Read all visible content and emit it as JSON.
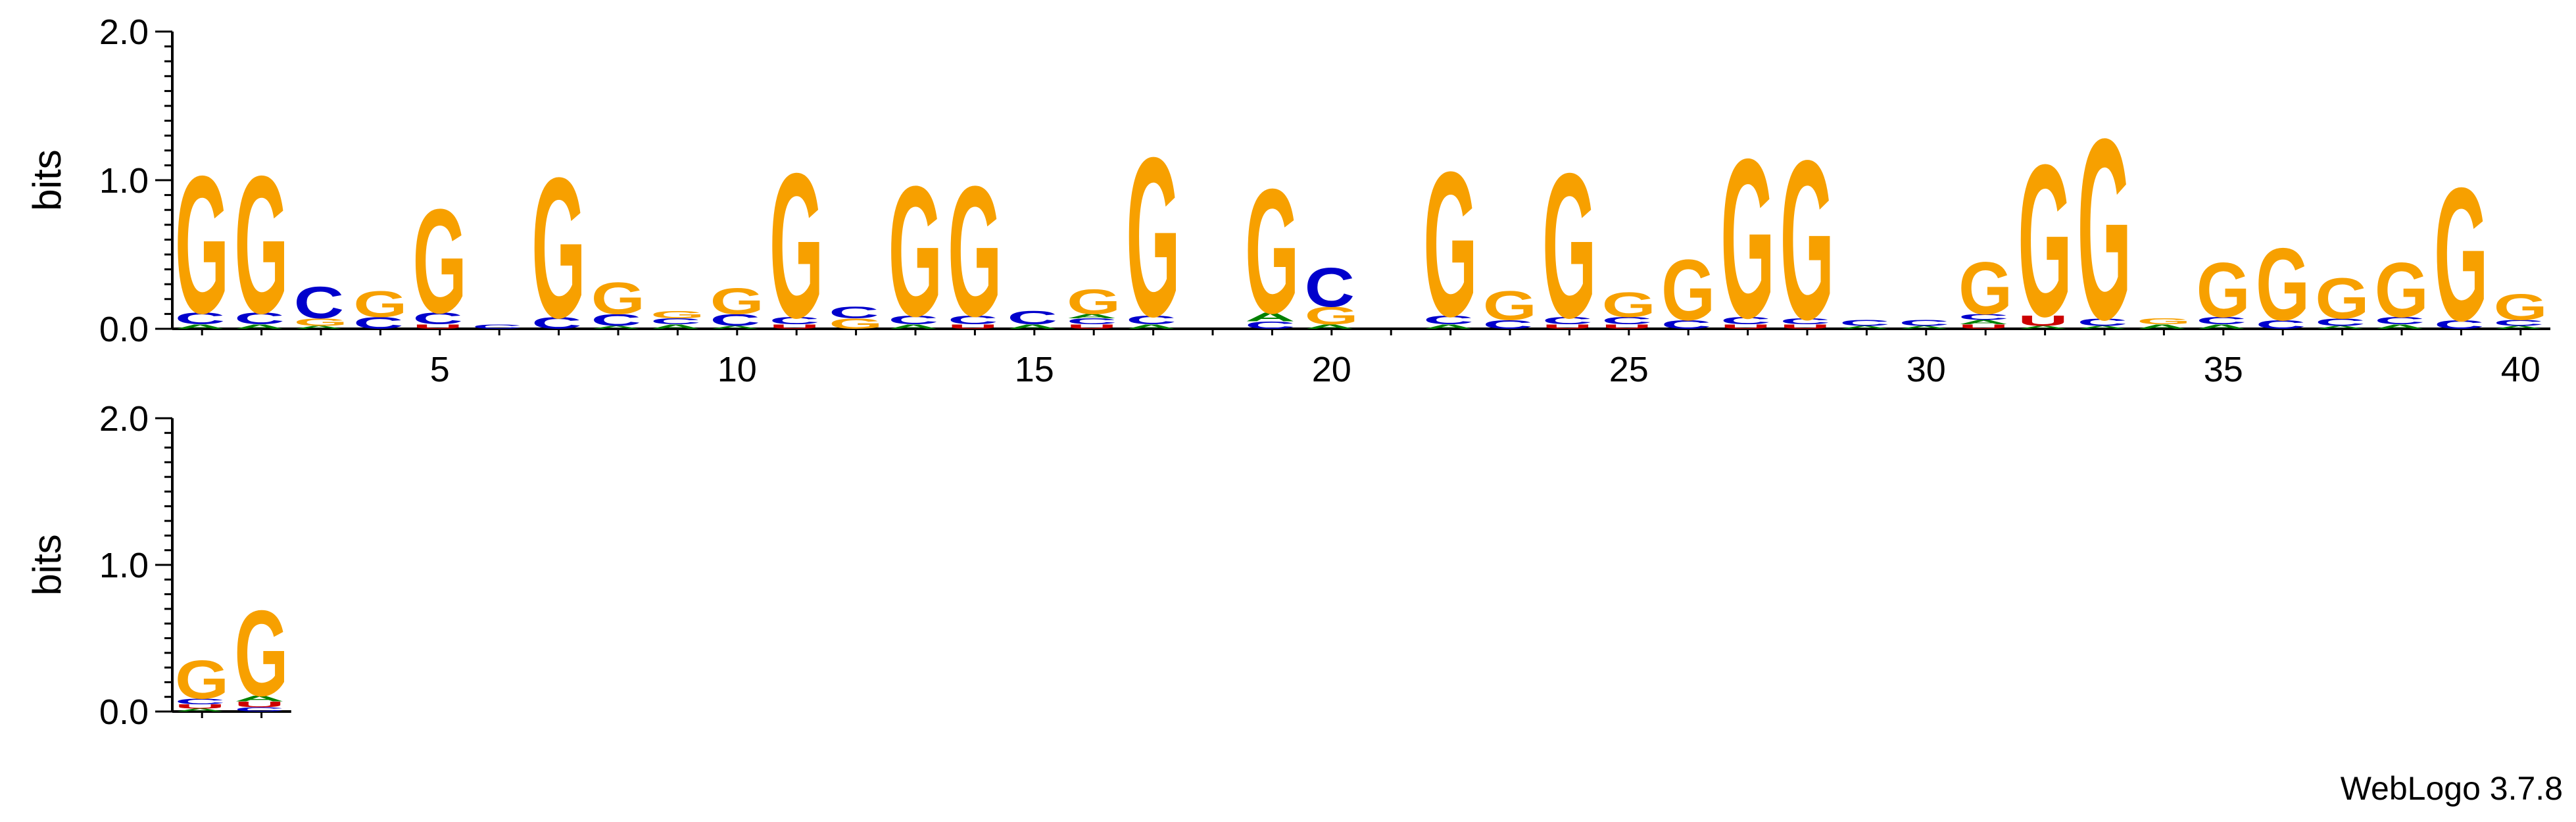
{
  "chart_data": {
    "type": "sequence-logo",
    "ylabel": "bits",
    "ylim": [
      0,
      2.0
    ],
    "yticks": [
      "0.0",
      "1.0",
      "2.0"
    ],
    "xticks_shown": [
      "5",
      "10",
      "15",
      "20",
      "25",
      "30",
      "35",
      "40"
    ],
    "alphabet_colors": {
      "G": "#f7a000",
      "C": "#0000cc",
      "A": "#008000",
      "U": "#cc0000"
    },
    "rows": [
      {
        "positions_start": 1,
        "positions_end": 40,
        "stacks": [
          {
            "pos": 1,
            "letters": [
              [
                "A",
                0.03
              ],
              [
                "C",
                0.08
              ],
              [
                "G",
                0.95
              ]
            ]
          },
          {
            "pos": 2,
            "letters": [
              [
                "A",
                0.03
              ],
              [
                "C",
                0.08
              ],
              [
                "G",
                0.95
              ]
            ]
          },
          {
            "pos": 3,
            "letters": [
              [
                "A",
                0.02
              ],
              [
                "G",
                0.05
              ],
              [
                "C",
                0.22
              ]
            ]
          },
          {
            "pos": 4,
            "letters": [
              [
                "C",
                0.08
              ],
              [
                "G",
                0.18
              ]
            ]
          },
          {
            "pos": 5,
            "letters": [
              [
                "U",
                0.03
              ],
              [
                "C",
                0.08
              ],
              [
                "G",
                0.72
              ]
            ]
          },
          {
            "pos": 6,
            "letters": [
              [
                "C",
                0.03
              ]
            ]
          },
          {
            "pos": 7,
            "letters": [
              [
                "C",
                0.08
              ],
              [
                "G",
                0.97
              ]
            ]
          },
          {
            "pos": 8,
            "letters": [
              [
                "A",
                0.02
              ],
              [
                "C",
                0.08
              ],
              [
                "G",
                0.22
              ]
            ]
          },
          {
            "pos": 9,
            "letters": [
              [
                "A",
                0.03
              ],
              [
                "C",
                0.04
              ],
              [
                "G",
                0.05
              ]
            ]
          },
          {
            "pos": 10,
            "letters": [
              [
                "A",
                0.02
              ],
              [
                "C",
                0.08
              ],
              [
                "G",
                0.18
              ]
            ]
          },
          {
            "pos": 11,
            "letters": [
              [
                "U",
                0.03
              ],
              [
                "C",
                0.05
              ],
              [
                "G",
                1.0
              ]
            ]
          },
          {
            "pos": 12,
            "letters": [
              [
                "G",
                0.07
              ],
              [
                "C",
                0.08
              ]
            ]
          },
          {
            "pos": 13,
            "letters": [
              [
                "A",
                0.03
              ],
              [
                "C",
                0.06
              ],
              [
                "G",
                0.9
              ]
            ]
          },
          {
            "pos": 14,
            "letters": [
              [
                "U",
                0.03
              ],
              [
                "C",
                0.06
              ],
              [
                "G",
                0.9
              ]
            ]
          },
          {
            "pos": 15,
            "letters": [
              [
                "A",
                0.03
              ],
              [
                "C",
                0.09
              ]
            ]
          },
          {
            "pos": 16,
            "letters": [
              [
                "U",
                0.03
              ],
              [
                "C",
                0.04
              ],
              [
                "A",
                0.03
              ],
              [
                "G",
                0.17
              ]
            ]
          },
          {
            "pos": 17,
            "letters": [
              [
                "A",
                0.03
              ],
              [
                "C",
                0.06
              ],
              [
                "G",
                1.1
              ]
            ]
          },
          {
            "pos": 18,
            "letters": []
          },
          {
            "pos": 19,
            "letters": [
              [
                "C",
                0.05
              ],
              [
                "A",
                0.06
              ],
              [
                "G",
                0.86
              ]
            ]
          },
          {
            "pos": 20,
            "letters": [
              [
                "A",
                0.03
              ],
              [
                "G",
                0.12
              ],
              [
                "C",
                0.27
              ]
            ]
          },
          {
            "pos": 21,
            "letters": []
          },
          {
            "pos": 22,
            "letters": [
              [
                "A",
                0.03
              ],
              [
                "C",
                0.06
              ],
              [
                "G",
                1.0
              ]
            ]
          },
          {
            "pos": 23,
            "letters": [
              [
                "C",
                0.06
              ],
              [
                "G",
                0.2
              ]
            ]
          },
          {
            "pos": 24,
            "letters": [
              [
                "U",
                0.03
              ],
              [
                "C",
                0.05
              ],
              [
                "G",
                1.0
              ]
            ]
          },
          {
            "pos": 25,
            "letters": [
              [
                "U",
                0.03
              ],
              [
                "C",
                0.05
              ],
              [
                "G",
                0.17
              ]
            ]
          },
          {
            "pos": 26,
            "letters": [
              [
                "C",
                0.06
              ],
              [
                "G",
                0.42
              ]
            ]
          },
          {
            "pos": 27,
            "letters": [
              [
                "U",
                0.03
              ],
              [
                "C",
                0.05
              ],
              [
                "G",
                1.1
              ]
            ]
          },
          {
            "pos": 28,
            "letters": [
              [
                "U",
                0.03
              ],
              [
                "C",
                0.04
              ],
              [
                "G",
                1.1
              ]
            ]
          },
          {
            "pos": 29,
            "letters": [
              [
                "A",
                0.02
              ],
              [
                "C",
                0.04
              ]
            ]
          },
          {
            "pos": 30,
            "letters": [
              [
                "A",
                0.02
              ],
              [
                "C",
                0.04
              ]
            ]
          },
          {
            "pos": 31,
            "letters": [
              [
                "U",
                0.03
              ],
              [
                "A",
                0.03
              ],
              [
                "C",
                0.04
              ],
              [
                "G",
                0.36
              ]
            ]
          },
          {
            "pos": 32,
            "letters": [
              [
                "A",
                0.02
              ],
              [
                "U",
                0.07
              ],
              [
                "G",
                1.05
              ]
            ]
          },
          {
            "pos": 33,
            "letters": [
              [
                "A",
                0.02
              ],
              [
                "C",
                0.05
              ],
              [
                "G",
                1.25
              ]
            ]
          },
          {
            "pos": 34,
            "letters": [
              [
                "A",
                0.03
              ],
              [
                "G",
                0.04
              ]
            ]
          },
          {
            "pos": 35,
            "letters": [
              [
                "A",
                0.03
              ],
              [
                "C",
                0.05
              ],
              [
                "G",
                0.38
              ]
            ]
          },
          {
            "pos": 36,
            "letters": [
              [
                "C",
                0.06
              ],
              [
                "G",
                0.5
              ]
            ]
          },
          {
            "pos": 37,
            "letters": [
              [
                "A",
                0.02
              ],
              [
                "C",
                0.05
              ],
              [
                "G",
                0.28
              ]
            ]
          },
          {
            "pos": 38,
            "letters": [
              [
                "A",
                0.03
              ],
              [
                "C",
                0.05
              ],
              [
                "G",
                0.38
              ]
            ]
          },
          {
            "pos": 39,
            "letters": [
              [
                "C",
                0.06
              ],
              [
                "G",
                0.92
              ]
            ]
          },
          {
            "pos": 40,
            "letters": [
              [
                "A",
                0.02
              ],
              [
                "C",
                0.04
              ],
              [
                "G",
                0.18
              ]
            ]
          }
        ]
      },
      {
        "positions_start": 41,
        "positions_end": 42,
        "stacks": [
          {
            "pos": 41,
            "letters": [
              [
                "A",
                0.02
              ],
              [
                "U",
                0.03
              ],
              [
                "C",
                0.04
              ],
              [
                "G",
                0.27
              ]
            ]
          },
          {
            "pos": 42,
            "letters": [
              [
                "C",
                0.03
              ],
              [
                "U",
                0.04
              ],
              [
                "A",
                0.04
              ],
              [
                "G",
                0.6
              ]
            ]
          }
        ]
      }
    ]
  },
  "credit": "WebLogo 3.7.8"
}
